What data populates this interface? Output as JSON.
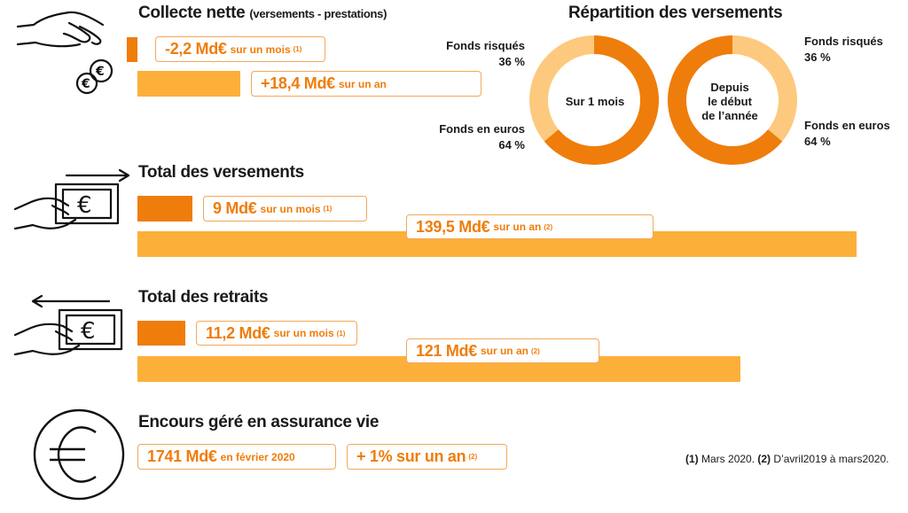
{
  "collecte": {
    "title": "Collecte nette",
    "subtitle": "(versements - prestations)",
    "month_value": "-2,2 Md€",
    "month_text": "sur un mois",
    "month_note": "(1)",
    "year_value": "+18,4 Md€",
    "year_text": "sur un an"
  },
  "versements": {
    "title": "Total des versements",
    "month_value": "9 Md€",
    "month_text": "sur un mois",
    "month_note": "(1)",
    "year_value": "139,5 Md€",
    "year_text": "sur un an",
    "year_note": "(2)"
  },
  "retraits": {
    "title": "Total des retraits",
    "month_value": "11,2 Md€",
    "month_text": "sur un mois",
    "month_note": "(1)",
    "year_value": "121 Md€",
    "year_text": "sur un an",
    "year_note": "(2)"
  },
  "encours": {
    "title": "Encours géré en assurance vie",
    "value": "1741 Md€",
    "value_text": "en février 2020",
    "change": "+ 1% sur un an",
    "change_note": "(2)"
  },
  "repartition": {
    "title": "Répartition des versements",
    "left_center": "Sur 1 mois",
    "right_center_1": "Depuis",
    "right_center_2": "le début",
    "right_center_3": "de l’année",
    "left_label_risk": "Fonds risqués",
    "left_label_risk_pct": "36 %",
    "left_label_euro": "Fonds en euros",
    "left_label_euro_pct": "64 %",
    "right_label_risk": "Fonds risqués",
    "right_label_risk_pct": "36 %",
    "right_label_euro": "Fonds en euros",
    "right_label_euro_pct": "64 %"
  },
  "footnote": {
    "n1": "(1)",
    "t1": "Mars 2020.",
    "n2": "(2)",
    "t2": "D’avril2019 à mars2020."
  },
  "colors": {
    "dark_orange": "#ef7d0b",
    "light_orange": "#fcb03a",
    "pale_orange": "#fdc97e",
    "box_border": "#f2a85a"
  },
  "chart_data": [
    {
      "type": "bar",
      "title": "Collecte nette",
      "categories": [
        "sur un mois",
        "sur un an"
      ],
      "values": [
        -2.2,
        18.4
      ],
      "unit": "Md€"
    },
    {
      "type": "bar",
      "title": "Total des versements",
      "categories": [
        "sur un mois",
        "sur un an"
      ],
      "values": [
        9,
        139.5
      ],
      "unit": "Md€"
    },
    {
      "type": "bar",
      "title": "Total des retraits",
      "categories": [
        "sur un mois",
        "sur un an"
      ],
      "values": [
        11.2,
        121
      ],
      "unit": "Md€"
    },
    {
      "type": "pie",
      "title": "Sur 1 mois",
      "categories": [
        "Fonds risqués",
        "Fonds en euros"
      ],
      "values": [
        36,
        64
      ],
      "unit": "%"
    },
    {
      "type": "pie",
      "title": "Depuis le début de l’année",
      "categories": [
        "Fonds risqués",
        "Fonds en euros"
      ],
      "values": [
        36,
        64
      ],
      "unit": "%"
    }
  ]
}
